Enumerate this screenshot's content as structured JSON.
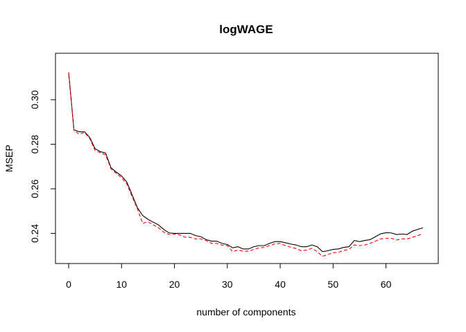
{
  "chart_data": {
    "type": "line",
    "title": "logWAGE",
    "xlabel": "number of components",
    "ylabel": "MSEP",
    "xlim": [
      0,
      67
    ],
    "ylim": [
      0.2305,
      0.3165
    ],
    "xticks": [
      0,
      10,
      20,
      30,
      40,
      50,
      60
    ],
    "xtick_labels": [
      "0",
      "10",
      "20",
      "30",
      "40",
      "50",
      "60"
    ],
    "yticks": [
      0.24,
      0.26,
      0.28,
      0.3
    ],
    "ytick_labels": [
      "0.24",
      "0.26",
      "0.28",
      "0.30"
    ],
    "grid": false,
    "legend": "none",
    "x": [
      0,
      1,
      2,
      3,
      4,
      5,
      6,
      7,
      8,
      9,
      10,
      11,
      12,
      13,
      14,
      15,
      16,
      17,
      18,
      19,
      20,
      21,
      22,
      23,
      24,
      25,
      26,
      27,
      28,
      29,
      30,
      31,
      32,
      33,
      34,
      35,
      36,
      37,
      38,
      39,
      40,
      41,
      42,
      43,
      44,
      45,
      46,
      47,
      48,
      49,
      50,
      51,
      52,
      53,
      54,
      55,
      56,
      57,
      58,
      59,
      60,
      61,
      62,
      63,
      64,
      65,
      66,
      67
    ],
    "series": [
      {
        "color": "#000000",
        "dash": "solid",
        "values": [
          0.3123,
          0.2865,
          0.2856,
          0.2856,
          0.283,
          0.278,
          0.2767,
          0.276,
          0.2695,
          0.2675,
          0.2658,
          0.263,
          0.2573,
          0.2515,
          0.248,
          0.2463,
          0.245,
          0.2438,
          0.2417,
          0.2402,
          0.24,
          0.24,
          0.24,
          0.24,
          0.239,
          0.2385,
          0.2372,
          0.2365,
          0.2365,
          0.2355,
          0.235,
          0.2335,
          0.234,
          0.233,
          0.233,
          0.234,
          0.2345,
          0.2345,
          0.2355,
          0.2363,
          0.2363,
          0.2358,
          0.2352,
          0.2348,
          0.234,
          0.234,
          0.2348,
          0.234,
          0.2318,
          0.2322,
          0.2328,
          0.233,
          0.2337,
          0.234,
          0.2368,
          0.2363,
          0.2368,
          0.2372,
          0.2385,
          0.2398,
          0.2403,
          0.2402,
          0.2395,
          0.2397,
          0.2395,
          0.241,
          0.2418,
          0.2425
        ]
      },
      {
        "color": "#ff0000",
        "dash": "dashed",
        "values": [
          0.3123,
          0.2862,
          0.2845,
          0.2853,
          0.2825,
          0.2772,
          0.2762,
          0.2752,
          0.269,
          0.267,
          0.265,
          0.2622,
          0.2565,
          0.251,
          0.2445,
          0.2452,
          0.2438,
          0.2425,
          0.2405,
          0.2395,
          0.2397,
          0.2393,
          0.2383,
          0.2382,
          0.2375,
          0.2375,
          0.2368,
          0.2355,
          0.2355,
          0.2347,
          0.2345,
          0.2318,
          0.2325,
          0.232,
          0.232,
          0.2328,
          0.2335,
          0.2337,
          0.2345,
          0.2353,
          0.2355,
          0.2345,
          0.2338,
          0.2332,
          0.2322,
          0.2325,
          0.2333,
          0.2318,
          0.2297,
          0.2305,
          0.2313,
          0.2315,
          0.2323,
          0.2328,
          0.2348,
          0.2345,
          0.2348,
          0.2355,
          0.2365,
          0.2375,
          0.2378,
          0.2378,
          0.237,
          0.2375,
          0.2375,
          0.2382,
          0.239,
          0.2398
        ]
      }
    ]
  }
}
